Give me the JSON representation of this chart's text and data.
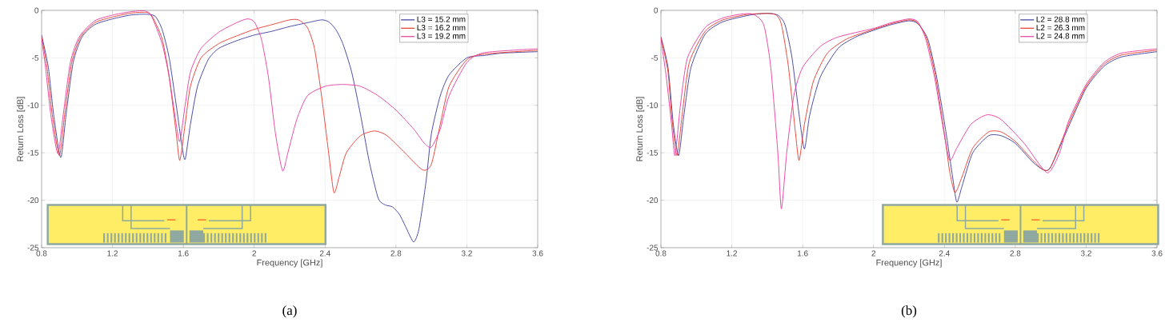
{
  "chart_data": [
    {
      "type": "line",
      "title": "(a)",
      "xlabel": "Frequency [GHz]",
      "ylabel": "Return Loss [dB]",
      "xlim": [
        0.8,
        3.6
      ],
      "ylim": [
        -25,
        0
      ],
      "xticks": [
        0.8,
        1.2,
        1.6,
        2,
        2.4,
        2.8,
        3.2,
        3.6
      ],
      "yticks": [
        -25,
        -20,
        -15,
        -10,
        -5,
        0
      ],
      "grid": true,
      "legend": "top right",
      "line_style": "solid",
      "marker": "none",
      "series": [
        {
          "name": "L3 = 15.2 mm",
          "color": "#3a3a9c",
          "x": [
            0.8,
            0.838,
            0.868,
            0.908,
            0.938,
            0.978,
            1.028,
            1.1,
            1.2,
            1.3,
            1.38,
            1.44,
            1.48,
            1.52,
            1.56,
            1.59,
            1.61,
            1.64,
            1.68,
            1.74,
            1.8,
            1.9,
            2.0,
            2.1,
            2.2,
            2.3,
            2.38,
            2.42,
            2.46,
            2.5,
            2.55,
            2.6,
            2.65,
            2.7,
            2.74,
            2.78,
            2.82,
            2.86,
            2.9,
            2.93,
            2.97,
            3.0,
            3.05,
            3.1,
            3.2,
            3.3,
            3.4,
            3.6
          ],
          "values": [
            -2.6,
            -6,
            -11,
            -15.5,
            -11,
            -5.5,
            -2.8,
            -1.5,
            -0.9,
            -0.5,
            -0.4,
            -0.6,
            -2,
            -5,
            -10,
            -14,
            -15.7,
            -12,
            -8,
            -5.2,
            -4,
            -3.2,
            -2.6,
            -2.2,
            -1.7,
            -1.3,
            -1.0,
            -1.2,
            -2,
            -3.5,
            -6.5,
            -11,
            -16,
            -19.8,
            -20.5,
            -20.7,
            -21.5,
            -23,
            -24.4,
            -23,
            -18,
            -13,
            -9,
            -6.8,
            -5,
            -4.75,
            -4.5,
            -4.35
          ]
        },
        {
          "name": "L3 = 16.2 mm",
          "color": "#e8382a",
          "x": [
            0.8,
            0.83,
            0.86,
            0.9,
            0.93,
            0.97,
            1.02,
            1.1,
            1.2,
            1.3,
            1.38,
            1.42,
            1.48,
            1.52,
            1.56,
            1.58,
            1.61,
            1.64,
            1.7,
            1.8,
            1.9,
            2.0,
            2.1,
            2.2,
            2.25,
            2.3,
            2.34,
            2.38,
            2.42,
            2.45,
            2.48,
            2.52,
            2.6,
            2.68,
            2.75,
            2.85,
            2.95,
            3.0,
            3.05,
            3.1,
            3.2,
            3.3,
            3.6
          ],
          "values": [
            -2.8,
            -6,
            -11,
            -15.3,
            -11,
            -5.5,
            -2.8,
            -1.3,
            -0.7,
            -0.3,
            -0.2,
            -0.5,
            -3,
            -7,
            -13,
            -15.8,
            -12,
            -8,
            -5,
            -3.5,
            -2.7,
            -2.0,
            -1.5,
            -1.0,
            -1.0,
            -1.8,
            -4,
            -9,
            -15,
            -19.2,
            -17.5,
            -15,
            -13.2,
            -12.7,
            -13.2,
            -15,
            -16.8,
            -16.2,
            -12,
            -8,
            -5.2,
            -4.6,
            -4.2
          ]
        },
        {
          "name": "L3 = 19.2 mm",
          "color": "#e8399e",
          "x": [
            0.8,
            0.822,
            0.852,
            0.892,
            0.922,
            0.962,
            1.012,
            1.1,
            1.2,
            1.3,
            1.38,
            1.42,
            1.48,
            1.52,
            1.56,
            1.58,
            1.61,
            1.64,
            1.7,
            1.8,
            1.9,
            1.96,
            2.0,
            2.04,
            2.08,
            2.12,
            2.16,
            2.19,
            2.24,
            2.3,
            2.4,
            2.5,
            2.6,
            2.7,
            2.8,
            2.9,
            2.96,
            3.0,
            3.05,
            3.1,
            3.2,
            3.3,
            3.6
          ],
          "values": [
            -3.0,
            -6,
            -11,
            -15.1,
            -11,
            -5.5,
            -2.8,
            -1.1,
            -0.5,
            -0.15,
            -0.05,
            -0.6,
            -3.5,
            -7,
            -12,
            -13.8,
            -10,
            -6.5,
            -4,
            -2.3,
            -1.3,
            -0.9,
            -1.2,
            -3,
            -7,
            -13,
            -16.9,
            -15,
            -11.5,
            -9,
            -8,
            -7.8,
            -8,
            -9,
            -10.5,
            -12.5,
            -14,
            -14.4,
            -12.5,
            -9,
            -5.5,
            -4.45,
            -4.05
          ]
        }
      ]
    },
    {
      "type": "line",
      "title": "(b)",
      "xlabel": "Frequency [GHz]",
      "ylabel": "Return Loss [dB]",
      "xlim": [
        0.8,
        3.6
      ],
      "ylim": [
        -25,
        0
      ],
      "xticks": [
        0.8,
        1.2,
        1.6,
        2,
        2.4,
        2.8,
        3.2,
        3.6
      ],
      "yticks": [
        -25,
        -20,
        -15,
        -10,
        -5,
        0
      ],
      "grid": true,
      "legend": "top right",
      "line_style": "solid",
      "marker": "none",
      "series": [
        {
          "name": "L2 = 28.8 mm",
          "color": "#3a3a9c",
          "x": [
            0.8,
            0.84,
            0.87,
            0.9,
            0.93,
            0.97,
            1.05,
            1.15,
            1.3,
            1.4,
            1.46,
            1.5,
            1.54,
            1.58,
            1.61,
            1.64,
            1.7,
            1.8,
            1.9,
            2.0,
            2.1,
            2.2,
            2.25,
            2.306,
            2.356,
            2.406,
            2.446,
            2.47,
            2.5,
            2.56,
            2.65,
            2.72,
            2.8,
            2.9,
            2.96,
            3.0,
            3.1,
            3.2,
            3.3,
            3.4,
            3.6
          ],
          "values": [
            -2.8,
            -6,
            -12,
            -15.3,
            -11,
            -6,
            -2.5,
            -1.2,
            -0.5,
            -0.3,
            -0.5,
            -1.5,
            -5,
            -11,
            -14.6,
            -11,
            -7,
            -4,
            -2.8,
            -2.1,
            -1.5,
            -1.1,
            -1.4,
            -3,
            -7,
            -12.5,
            -17.5,
            -20.2,
            -18.5,
            -15,
            -13.2,
            -13.2,
            -14,
            -16,
            -16.8,
            -16.5,
            -12.3,
            -8.2,
            -5.9,
            -4.9,
            -4.35
          ]
        },
        {
          "name": "L2 = 26.3 mm",
          "color": "#e8382a",
          "x": [
            0.8,
            0.84,
            0.86,
            0.89,
            0.92,
            0.96,
            1.05,
            1.15,
            1.3,
            1.44,
            1.48,
            1.52,
            1.56,
            1.58,
            1.61,
            1.66,
            1.74,
            1.85,
            2.0,
            2.1,
            2.2,
            2.25,
            2.3,
            2.35,
            2.4,
            2.43,
            2.46,
            2.5,
            2.56,
            2.65,
            2.72,
            2.8,
            2.9,
            2.96,
            3.0,
            3.1,
            3.2,
            3.3,
            3.4,
            3.6
          ],
          "values": [
            -2.8,
            -6.5,
            -11,
            -15.3,
            -11,
            -5.5,
            -2.2,
            -1.0,
            -0.4,
            -0.4,
            -1.5,
            -6,
            -13,
            -15.8,
            -12,
            -7.5,
            -4.5,
            -3,
            -2.0,
            -1.4,
            -1.0,
            -1.3,
            -3,
            -7,
            -13,
            -17,
            -19.2,
            -17.5,
            -14.5,
            -12.8,
            -12.8,
            -13.8,
            -15.8,
            -16.8,
            -16.5,
            -12,
            -8,
            -5.7,
            -4.7,
            -4.2
          ]
        },
        {
          "name": "L2 = 24.8 mm",
          "color": "#e8399e",
          "x": [
            0.8,
            0.83,
            0.86,
            0.88,
            0.91,
            0.95,
            1.05,
            1.15,
            1.25,
            1.32,
            1.38,
            1.42,
            1.46,
            1.48,
            1.51,
            1.55,
            1.6,
            1.7,
            1.8,
            2.0,
            2.1,
            2.2,
            2.25,
            2.294,
            2.344,
            2.394,
            2.43,
            2.47,
            2.55,
            2.64,
            2.72,
            2.85,
            2.98,
            3.05,
            3.1,
            3.2,
            3.3,
            3.4,
            3.6
          ],
          "values": [
            -3.0,
            -7,
            -12,
            -15.3,
            -10,
            -5,
            -1.8,
            -0.8,
            -0.4,
            -0.4,
            -1.5,
            -6,
            -15,
            -20.9,
            -15,
            -9,
            -6,
            -3.8,
            -2.8,
            -1.9,
            -1.3,
            -0.9,
            -1.2,
            -3,
            -7,
            -12.5,
            -15.8,
            -14.5,
            -12,
            -11.0,
            -11.5,
            -14,
            -17.1,
            -15,
            -11.7,
            -7.8,
            -5.5,
            -4.5,
            -4.05
          ]
        }
      ]
    }
  ]
}
